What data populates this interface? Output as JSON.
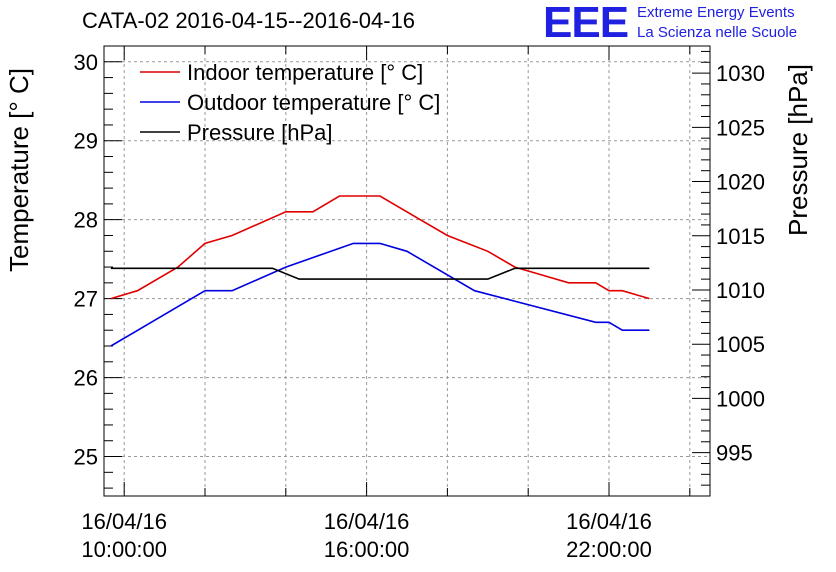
{
  "chart_data": {
    "type": "line",
    "title": "CATA-02 2016-04-15--2016-04-16",
    "logo": {
      "mark": "EEE",
      "line1": "Extreme Energy Events",
      "line2": "La Scienza nelle Scuole",
      "color": "#2020e0"
    },
    "ylabel_left": "Temperature [° C]",
    "ylabel_right": "Pressure [hPa]",
    "x_unit": "hours",
    "xlim": [
      9.5,
      24.5
    ],
    "ylim_left": [
      24.5,
      30.2
    ],
    "ylim_right": [
      991,
      1032.5
    ],
    "x_ticks": [
      {
        "x": 10,
        "date": "16/04/16",
        "time": "10:00:00"
      },
      {
        "x": 16,
        "date": "16/04/16",
        "time": "16:00:00"
      },
      {
        "x": 22,
        "date": "16/04/16",
        "time": "22:00:00"
      }
    ],
    "x_minor_ticks": [
      12,
      14,
      18,
      20,
      24
    ],
    "y_ticks_left": [
      25,
      26,
      27,
      28,
      29,
      30
    ],
    "y_ticks_right": [
      995,
      1000,
      1005,
      1010,
      1015,
      1020,
      1025,
      1030
    ],
    "grid": true,
    "legend_position": "top-left",
    "series": [
      {
        "name": "Indoor temperature [° C]",
        "axis": "left",
        "color": "#e00000",
        "x": [
          9.67,
          10.33,
          11.33,
          12,
          12.67,
          14,
          14.67,
          15.33,
          16.33,
          17.33,
          18,
          19,
          19.67,
          20.33,
          21,
          21.67,
          22,
          22.33,
          23
        ],
        "y": [
          27.0,
          27.1,
          27.4,
          27.7,
          27.8,
          28.1,
          28.1,
          28.3,
          28.3,
          28.0,
          27.8,
          27.6,
          27.4,
          27.3,
          27.2,
          27.2,
          27.1,
          27.1,
          27.0
        ]
      },
      {
        "name": "Outdoor temperature [° C]",
        "axis": "left",
        "color": "#0000e0",
        "x": [
          9.67,
          12,
          12.67,
          14,
          15.67,
          16.33,
          17,
          18.67,
          21.67,
          22,
          22.33,
          23
        ],
        "y": [
          26.4,
          27.1,
          27.1,
          27.4,
          27.7,
          27.7,
          27.6,
          27.1,
          26.7,
          26.7,
          26.6,
          26.6
        ]
      },
      {
        "name": "Pressure [hPa]",
        "axis": "right",
        "color": "#000000",
        "x": [
          9.67,
          13.67,
          14.33,
          19,
          19.67,
          23
        ],
        "y": [
          1012,
          1012,
          1011,
          1011,
          1012,
          1012
        ]
      }
    ]
  }
}
